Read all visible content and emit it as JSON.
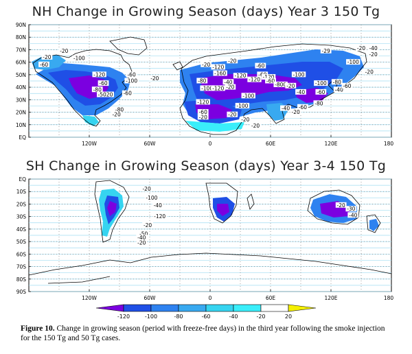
{
  "nh_panel": {
    "title": "NH Change in Growing Season (days) Year 3 150 Tg",
    "lat_labels": [
      "90N",
      "80N",
      "70N",
      "60N",
      "50N",
      "40N",
      "30N",
      "20N",
      "10N",
      "EQ"
    ],
    "lon_labels": [
      "120W",
      "60W",
      "0",
      "60E",
      "120E",
      "180"
    ],
    "contour_labels": [
      {
        "text": "-20",
        "lon": -145,
        "lat": 69
      },
      {
        "text": "-100",
        "lon": -130,
        "lat": 63
      },
      {
        "text": "-60",
        "lon": -165,
        "lat": 58
      },
      {
        "text": "-20",
        "lon": -162,
        "lat": 64
      },
      {
        "text": "-120",
        "lon": -110,
        "lat": 50
      },
      {
        "text": "-60",
        "lon": -78,
        "lat": 50
      },
      {
        "text": "-100",
        "lon": -78,
        "lat": 45
      },
      {
        "text": "-20",
        "lon": -55,
        "lat": 47
      },
      {
        "text": "-60",
        "lon": -106,
        "lat": 43
      },
      {
        "text": "-80",
        "lon": -112,
        "lat": 38
      },
      {
        "text": "-60",
        "lon": -82,
        "lat": 35
      },
      {
        "text": "-5020",
        "lon": -104,
        "lat": 34
      },
      {
        "text": "-80",
        "lon": -90,
        "lat": 22
      },
      {
        "text": "-20",
        "lon": -93,
        "lat": 18
      },
      {
        "text": "-20",
        "lon": -4,
        "lat": 58
      },
      {
        "text": "-20",
        "lon": 22,
        "lat": 61
      },
      {
        "text": "-120",
        "lon": 8,
        "lat": 56
      },
      {
        "text": "-160",
        "lon": 10,
        "lat": 51
      },
      {
        "text": "-120",
        "lon": 30,
        "lat": 49
      },
      {
        "text": "-60",
        "lon": 50,
        "lat": 57
      },
      {
        "text": "-60",
        "lon": 52,
        "lat": 50
      },
      {
        "text": "-120",
        "lon": 44,
        "lat": 46
      },
      {
        "text": "-120",
        "lon": 58,
        "lat": 48
      },
      {
        "text": "-60",
        "lon": 60,
        "lat": 45
      },
      {
        "text": "-800",
        "lon": 70,
        "lat": 42
      },
      {
        "text": "-20",
        "lon": 80,
        "lat": 41
      },
      {
        "text": "-80",
        "lon": -8,
        "lat": 45
      },
      {
        "text": "-100",
        "lon": -3,
        "lat": 39
      },
      {
        "text": "-120",
        "lon": 8,
        "lat": 39
      },
      {
        "text": "-20",
        "lon": 20,
        "lat": 40
      },
      {
        "text": "-40",
        "lon": 18,
        "lat": 44
      },
      {
        "text": "-100",
        "lon": 38,
        "lat": 33
      },
      {
        "text": "-100",
        "lon": 32,
        "lat": 25
      },
      {
        "text": "-60",
        "lon": -7,
        "lat": 20
      },
      {
        "text": "-20",
        "lon": -7,
        "lat": 16
      },
      {
        "text": "-120",
        "lon": -7,
        "lat": 28
      },
      {
        "text": "-20",
        "lon": 22,
        "lat": 18
      },
      {
        "text": "-20",
        "lon": 35,
        "lat": 14
      },
      {
        "text": "-20",
        "lon": 45,
        "lat": 9
      },
      {
        "text": "-40",
        "lon": 75,
        "lat": 23
      },
      {
        "text": "-20",
        "lon": 85,
        "lat": 20
      },
      {
        "text": "-60",
        "lon": 92,
        "lat": 24
      },
      {
        "text": "-40",
        "lon": 90,
        "lat": 36
      },
      {
        "text": "-60",
        "lon": 110,
        "lat": 36
      },
      {
        "text": "-80",
        "lon": 108,
        "lat": 27
      },
      {
        "text": "-100",
        "lon": 88,
        "lat": 50
      },
      {
        "text": "-100",
        "lon": 110,
        "lat": 43
      },
      {
        "text": "-80",
        "lon": 126,
        "lat": 44
      },
      {
        "text": "-40",
        "lon": 128,
        "lat": 38
      },
      {
        "text": "-60",
        "lon": 136,
        "lat": 41
      },
      {
        "text": "-100",
        "lon": 142,
        "lat": 60
      },
      {
        "text": "-20",
        "lon": 150,
        "lat": 71
      },
      {
        "text": "-40",
        "lon": 162,
        "lat": 71
      },
      {
        "text": "-20",
        "lon": 158,
        "lat": 52
      },
      {
        "text": "-29",
        "lon": 115,
        "lat": 69
      },
      {
        "text": "-20",
        "lon": 162,
        "lat": 66
      }
    ]
  },
  "sh_panel": {
    "title": "SH Change in Growing Season (days) Year 3-4 150 Tg",
    "lat_labels": [
      "EQ",
      "10S",
      "20S",
      "30S",
      "40S",
      "50S",
      "60S",
      "70S",
      "80S",
      "90S"
    ],
    "lon_labels": [
      "120W",
      "60W",
      "0",
      "60E",
      "120E",
      "180"
    ],
    "contour_labels": [
      {
        "text": "-20",
        "lon": -63,
        "lat": -8
      },
      {
        "text": "-100",
        "lon": -58,
        "lat": -15
      },
      {
        "text": "-40",
        "lon": -52,
        "lat": -21
      },
      {
        "text": "-120",
        "lon": -50,
        "lat": -30
      },
      {
        "text": "-20",
        "lon": -62,
        "lat": -37
      },
      {
        "text": "-50",
        "lon": -66,
        "lat": -44
      },
      {
        "text": "-40",
        "lon": -68,
        "lat": -47
      },
      {
        "text": "-20",
        "lon": -68,
        "lat": -51
      },
      {
        "text": "-20",
        "lon": 130,
        "lat": -21
      },
      {
        "text": "-30",
        "lon": 140,
        "lat": -24
      },
      {
        "text": "-40",
        "lon": 142,
        "lat": -29
      }
    ]
  },
  "colorbar": {
    "tick_labels": [
      "-120",
      "-100",
      "-80",
      "-60",
      "-40",
      "-20",
      "20"
    ],
    "colors": [
      "#7b00e0",
      "#1f4fe6",
      "#2e82f0",
      "#38a9f0",
      "#36d4f0",
      "#3aeefa",
      "#ffffff",
      "#f5f000"
    ]
  },
  "caption": {
    "figure_label": "Figure 10.",
    "text": "Change in growing season (period with freeze-free days) in the third year following the smoke injection for the 150 Tg and 50 Tg cases."
  }
}
